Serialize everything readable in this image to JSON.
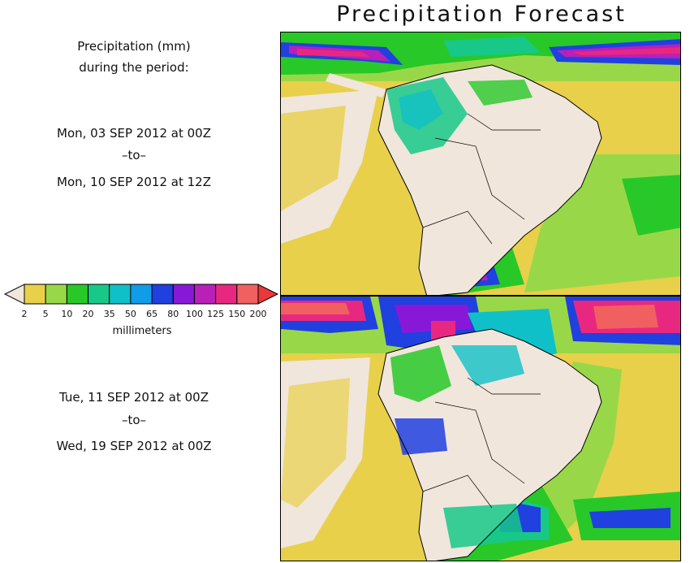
{
  "title": "Precipitation Forecast",
  "left_panel": {
    "heading_line1": "Precipitation (mm)",
    "heading_line2": "during the period:",
    "period1": {
      "start": "Mon, 03 SEP 2012 at 00Z",
      "sep": "–to–",
      "end": "Mon, 10 SEP 2012 at 12Z"
    },
    "period2": {
      "start": "Tue, 11 SEP 2012 at 00Z",
      "sep": "–to–",
      "end": "Wed, 19 SEP 2012 at 00Z"
    }
  },
  "legend": {
    "units": "millimeters",
    "levels": [
      "2",
      "5",
      "10",
      "20",
      "35",
      "50",
      "65",
      "80",
      "100",
      "125",
      "150",
      "200"
    ],
    "colors": [
      "#e8d04a",
      "#98d848",
      "#28c828",
      "#18c888",
      "#10c0c8",
      "#109ce8",
      "#2040e0",
      "#8818d8",
      "#b820b8",
      "#e82880",
      "#f06060"
    ],
    "under_color": "#f0e6dc",
    "over_color": "#e83838"
  },
  "colors": {
    "land_dry": "#f0e6dc",
    "ocean_base": "#e8d04a"
  }
}
